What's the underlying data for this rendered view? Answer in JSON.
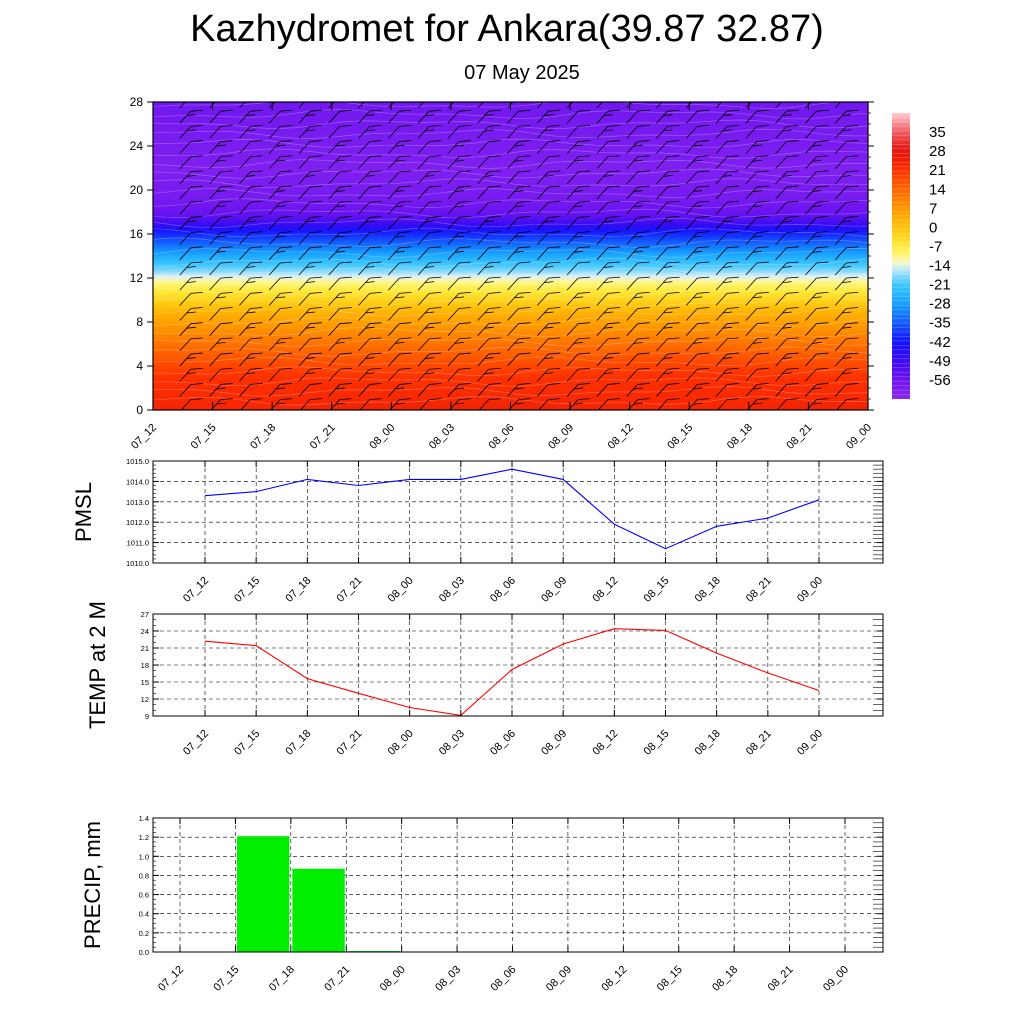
{
  "header": {
    "title": "Kazhydromet for Ankara(39.87 32.87)",
    "subtitle": "07 May 2025"
  },
  "chart_data": [
    {
      "type": "heatmap",
      "name": "temperature-cross-section",
      "yticks": [
        0,
        4,
        8,
        12,
        16,
        20,
        24,
        28
      ],
      "ylim": [
        0,
        28
      ],
      "x": [
        "07_12",
        "07_15",
        "07_18",
        "07_21",
        "08_00",
        "08_03",
        "08_06",
        "08_09",
        "08_12",
        "08_15",
        "08_18",
        "08_21",
        "09_00"
      ],
      "colorbar": {
        "labels": [
          "35",
          "28",
          "21",
          "14",
          "7",
          "0",
          "-7",
          "-14",
          "-21",
          "-28",
          "-35",
          "-42",
          "-49",
          "-56"
        ],
        "range": [
          -63,
          42
        ]
      },
      "temperature_profile": [
        {
          "level": 0,
          "value": 24
        },
        {
          "level": 3,
          "value": 21
        },
        {
          "level": 6,
          "value": 12
        },
        {
          "level": 9,
          "value": 2
        },
        {
          "level": 11.5,
          "value": -10
        },
        {
          "level": 12.2,
          "value": -15
        },
        {
          "level": 14,
          "value": -26
        },
        {
          "level": 16,
          "value": -40
        },
        {
          "level": 17.5,
          "value": -54
        },
        {
          "level": 19,
          "value": -58
        },
        {
          "level": 22,
          "value": -60
        },
        {
          "level": 28,
          "value": -57
        }
      ]
    },
    {
      "type": "line",
      "ylabel": "PMSL",
      "x": [
        "07_12",
        "07_15",
        "07_18",
        "07_21",
        "08_00",
        "08_03",
        "08_06",
        "08_09",
        "08_12",
        "08_15",
        "08_18",
        "08_21",
        "09_00"
      ],
      "ylim": [
        1010,
        1015
      ],
      "yticks": [
        "1010.0",
        "1011.0",
        "1012.0",
        "1013.0",
        "1014.0",
        "1015.0"
      ],
      "series": [
        {
          "values": [
            1013.3,
            1013.5,
            1014.1,
            1013.8,
            1014.1,
            1014.1,
            1014.6,
            1014.1,
            1011.9,
            1010.7,
            1011.8,
            1012.2,
            1013.1
          ],
          "color": "#0000ff"
        }
      ]
    },
    {
      "type": "line",
      "ylabel": "TEMP at 2 M",
      "x": [
        "07_12",
        "07_15",
        "07_18",
        "07_21",
        "08_00",
        "08_03",
        "08_06",
        "08_09",
        "08_12",
        "08_15",
        "08_18",
        "08_21",
        "09_00"
      ],
      "ylim": [
        9,
        27
      ],
      "yticks": [
        "9",
        "12",
        "15",
        "18",
        "21",
        "24",
        "27"
      ],
      "series": [
        {
          "values": [
            22.2,
            21.4,
            15.6,
            13.0,
            10.5,
            9.1,
            17.2,
            21.7,
            24.4,
            24.1,
            20.1,
            16.6,
            13.5
          ],
          "color": "#ff0000"
        }
      ]
    },
    {
      "type": "bar",
      "ylabel": "PRECIP, mm",
      "x": [
        "07_12",
        "07_15",
        "07_18",
        "07_21",
        "08_00",
        "08_03",
        "08_06",
        "08_09",
        "08_12",
        "08_15",
        "08_18",
        "08_21",
        "09_00"
      ],
      "ylim": [
        0,
        1.4
      ],
      "yticks": [
        "0.0",
        "0.2",
        "0.4",
        "0.6",
        "0.8",
        "1.0",
        "1.2",
        "1.4"
      ],
      "values": [
        0,
        1.21,
        0.87,
        0.01,
        0,
        0,
        0,
        0,
        0,
        0,
        0,
        0,
        0
      ],
      "color": "#00ee00"
    }
  ]
}
